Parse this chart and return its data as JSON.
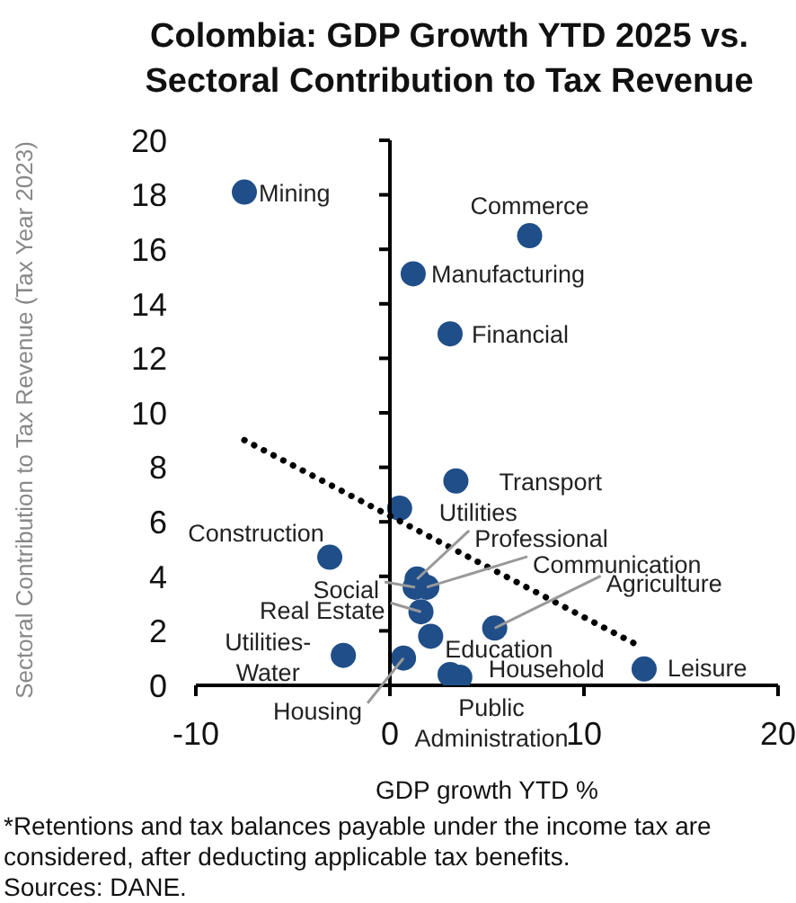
{
  "chart_data": {
    "type": "scatter",
    "title": "Colombia: GDP Growth YTD 2025 vs. Sectoral Contribution to Tax Revenue",
    "xlabel": "GDP growth YTD %",
    "ylabel": "Sectoral Contribution to Tax Revenue  (Tax Year 2023)",
    "xlim": [
      -10,
      20
    ],
    "xticks": [
      -10,
      0,
      10,
      20
    ],
    "ylim": [
      0,
      20
    ],
    "yticks": [
      0,
      2,
      4,
      6,
      8,
      10,
      12,
      14,
      16,
      18,
      20
    ],
    "grid": false,
    "legend": false,
    "marker": "circle",
    "series": [
      {
        "color": "#1f4e89",
        "x": [
          -7.5,
          7.2,
          1.2,
          3.1,
          3.4,
          0.5,
          -3.1,
          1.3,
          1.4,
          1.9,
          1.6,
          2.1,
          5.4,
          -2.4,
          0.7,
          3.1,
          3.6,
          13.1
        ],
        "values": [
          18.1,
          16.5,
          15.1,
          12.9,
          7.5,
          6.5,
          4.7,
          3.6,
          3.9,
          3.6,
          2.7,
          1.8,
          2.1,
          1.1,
          1.0,
          0.4,
          0.3,
          0.6
        ]
      },
      {
        "type": "line",
        "color": "#000000",
        "line_style": "dotted",
        "marker": "none",
        "x": [
          -7.5,
          12.7
        ],
        "values": [
          9.0,
          1.5
        ]
      }
    ],
    "ref_lines": [
      {
        "axis": "x",
        "value": 0,
        "color": "#000000"
      }
    ],
    "annotations": [
      {
        "text": "Mining",
        "x": -7.5,
        "y": 18.1
      },
      {
        "text": "Commerce",
        "x": 7.2,
        "y": 16.5
      },
      {
        "text": "Manufacturing",
        "x": 1.2,
        "y": 15.1
      },
      {
        "text": "Financial",
        "x": 3.1,
        "y": 12.9
      },
      {
        "text": "Transport",
        "x": 3.4,
        "y": 7.5
      },
      {
        "text": "Utilities",
        "x": 0.5,
        "y": 6.5
      },
      {
        "text": "Construction",
        "x": -3.1,
        "y": 4.7
      },
      {
        "text": "Social",
        "x": 1.3,
        "y": 3.6
      },
      {
        "text": "Professional",
        "x": 1.4,
        "y": 3.9
      },
      {
        "text": "Communication",
        "x": 1.9,
        "y": 3.6
      },
      {
        "text": "Real Estate",
        "x": 1.6,
        "y": 2.7
      },
      {
        "text": "Education",
        "x": 2.1,
        "y": 1.8
      },
      {
        "text": "Agriculture",
        "x": 5.4,
        "y": 2.1
      },
      {
        "text": "Utilities-Water",
        "x": -2.4,
        "y": 1.1
      },
      {
        "text": "Housing",
        "x": 0.7,
        "y": 1.0
      },
      {
        "text": "Public Administration",
        "x": 3.1,
        "y": 0.4
      },
      {
        "text": "Household",
        "x": 3.6,
        "y": 0.3
      },
      {
        "text": "Leisure",
        "x": 13.1,
        "y": 0.6
      },
      "*Retentions and tax balances payable under the income tax are considered, after deducting applicable tax benefits.",
      "Sources: DANE."
    ]
  }
}
